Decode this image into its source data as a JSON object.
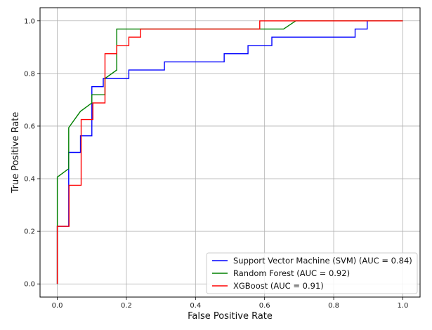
{
  "chart_data": {
    "type": "line",
    "title": "",
    "xlabel": "False Positive Rate",
    "ylabel": "True Positive Rate",
    "xlim": [
      -0.05,
      1.05
    ],
    "ylim": [
      -0.05,
      1.05
    ],
    "xticks": [
      0.0,
      0.2,
      0.4,
      0.6,
      0.8,
      1.0
    ],
    "yticks": [
      0.0,
      0.2,
      0.4,
      0.6,
      0.8,
      1.0
    ],
    "xtick_labels": [
      "0.0",
      "0.2",
      "0.4",
      "0.6",
      "0.8",
      "1.0"
    ],
    "ytick_labels": [
      "0.0",
      "0.2",
      "0.4",
      "0.6",
      "0.8",
      "1.0"
    ],
    "grid": true,
    "legend_position": "bottom-right",
    "series": [
      {
        "name": "Support Vector Machine (SVM) (AUC = 0.84)",
        "color": "#0000ff",
        "x": [
          0.0,
          0.0,
          0.033,
          0.033,
          0.067,
          0.067,
          0.1,
          0.1,
          0.133,
          0.133,
          0.207,
          0.207,
          0.31,
          0.31,
          0.483,
          0.483,
          0.552,
          0.552,
          0.621,
          0.621,
          0.862,
          0.862,
          0.897,
          0.897,
          1.0
        ],
        "y": [
          0.0,
          0.219,
          0.219,
          0.5,
          0.5,
          0.563,
          0.563,
          0.75,
          0.75,
          0.781,
          0.781,
          0.813,
          0.813,
          0.844,
          0.844,
          0.875,
          0.875,
          0.906,
          0.906,
          0.938,
          0.938,
          0.969,
          0.969,
          1.0,
          1.0
        ]
      },
      {
        "name": "Random Forest (AUC = 0.92)",
        "color": "#008000",
        "x": [
          0.0,
          0.0,
          0.033,
          0.033,
          0.067,
          0.1,
          0.1,
          0.138,
          0.138,
          0.172,
          0.172,
          0.655,
          0.69,
          1.0
        ],
        "y": [
          0.0,
          0.406,
          0.438,
          0.594,
          0.656,
          0.688,
          0.719,
          0.719,
          0.781,
          0.813,
          0.969,
          0.969,
          1.0,
          1.0
        ]
      },
      {
        "name": "XGBoost (AUC = 0.91)",
        "color": "#ff0000",
        "x": [
          0.0,
          0.0,
          0.034,
          0.034,
          0.069,
          0.069,
          0.103,
          0.103,
          0.138,
          0.138,
          0.172,
          0.172,
          0.207,
          0.207,
          0.241,
          0.241,
          0.586,
          0.586,
          1.0
        ],
        "y": [
          0.0,
          0.219,
          0.219,
          0.375,
          0.375,
          0.625,
          0.625,
          0.688,
          0.688,
          0.875,
          0.875,
          0.906,
          0.906,
          0.938,
          0.938,
          0.969,
          0.969,
          1.0,
          1.0
        ]
      }
    ]
  }
}
